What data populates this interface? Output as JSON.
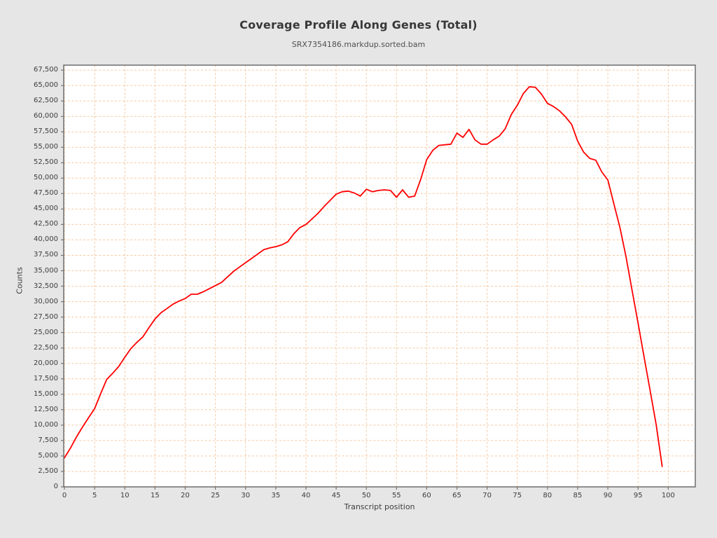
{
  "header": {
    "title": "Coverage Profile Along Genes (Total)",
    "subtitle": "SRX7354186.markdup.sorted.bam"
  },
  "chart_data": {
    "type": "line",
    "title": "Coverage Profile Along Genes (Total)",
    "subtitle": "SRX7354186.markdup.sorted.bam",
    "xlabel": "Transcript position",
    "ylabel": "Counts",
    "legend": "none",
    "grid": true,
    "grid_style": "dashed",
    "xlim": [
      -0.12,
      104.48
    ],
    "ylim": [
      0,
      68300
    ],
    "x_start": 0,
    "x_step": 1,
    "xticks": [
      0,
      5,
      10,
      15,
      20,
      25,
      30,
      35,
      40,
      45,
      50,
      55,
      60,
      65,
      70,
      75,
      80,
      85,
      90,
      95,
      100
    ],
    "xtick_labels": [
      "0",
      "5",
      "10",
      "15",
      "20",
      "25",
      "30",
      "35",
      "40",
      "45",
      "50",
      "55",
      "60",
      "65",
      "70",
      "75",
      "80",
      "85",
      "90",
      "95",
      "100"
    ],
    "ytick_values": [
      0,
      2500,
      5000,
      7500,
      10000,
      12500,
      15000,
      17500,
      20000,
      22500,
      25000,
      27500,
      30000,
      32500,
      35000,
      37500,
      40000,
      42500,
      45000,
      47500,
      50000,
      52500,
      55000,
      57500,
      60000,
      62500,
      65000,
      67500
    ],
    "ytick_labels": [
      "0",
      "2,500",
      "5,000",
      "7,500",
      "10,000",
      "12,500",
      "15,000",
      "17,500",
      "20,000",
      "22,500",
      "25,000",
      "27,500",
      "30,000",
      "32,500",
      "35,000",
      "37,500",
      "40,000",
      "42,500",
      "45,000",
      "47,500",
      "50,000",
      "52,500",
      "55,000",
      "57,500",
      "60,000",
      "62,500",
      "65,000",
      "67,500"
    ],
    "values": [
      4700,
      6300,
      8100,
      9700,
      11200,
      12700,
      15100,
      17400,
      18400,
      19500,
      21000,
      22400,
      23400,
      24300,
      25800,
      27200,
      28200,
      28900,
      29600,
      30100,
      30500,
      31200,
      31200,
      31600,
      32100,
      32600,
      33100,
      34000,
      34900,
      35600,
      36300,
      37000,
      37700,
      38400,
      38700,
      38900,
      39200,
      39700,
      41000,
      42000,
      42500,
      43400,
      44300,
      45400,
      46400,
      47400,
      47800,
      47900,
      47600,
      47100,
      48200,
      47800,
      48000,
      48100,
      48000,
      46900,
      48100,
      46900,
      47100,
      49800,
      53000,
      54500,
      55300,
      55400,
      55500,
      57300,
      56600,
      57900,
      56200,
      55500,
      55500,
      56200,
      56800,
      58000,
      60300,
      61800,
      63700,
      64800,
      64700,
      63600,
      62100,
      61600,
      60900,
      59900,
      58700,
      56000,
      54200,
      53200,
      52900,
      51000,
      49700,
      45800,
      42000,
      37300,
      31900,
      26500,
      21000,
      15600,
      10100,
      3300
    ],
    "colors": {
      "line": "#ff0000",
      "grid": "#f7c9a2",
      "plot_background": "#ffffff",
      "figure_background": "#e6e6e6",
      "spine": "#757575",
      "text": "#3d3d3d"
    }
  }
}
